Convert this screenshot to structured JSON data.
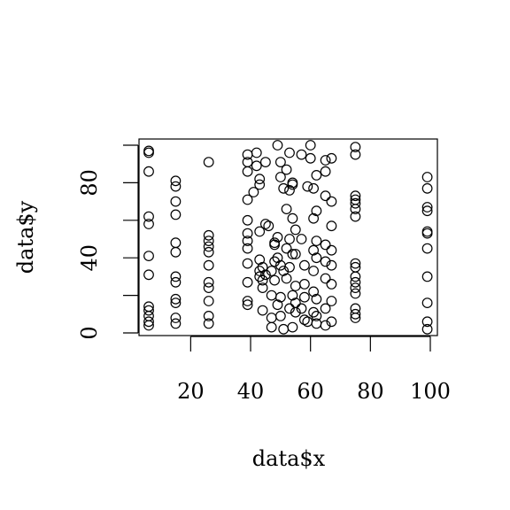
{
  "chart_data": {
    "type": "scatter",
    "title": "",
    "xlabel": "data$x",
    "ylabel": "data$y",
    "xlim": [
      6,
      100
    ],
    "ylim": [
      0,
      100
    ],
    "xticks": [
      20,
      40,
      60,
      80,
      100
    ],
    "yticks": [
      0,
      20,
      40,
      60,
      80,
      100
    ],
    "xtick_labels": [
      "20",
      "40",
      "60",
      "80",
      "100"
    ],
    "ytick_labels": [
      "0",
      "",
      "40",
      "",
      "80",
      ""
    ],
    "grid": false,
    "legend": "none",
    "marker": "open-circle",
    "color": "#000000",
    "x": [
      6,
      6,
      6,
      6,
      6,
      6,
      6,
      6,
      6,
      6,
      6,
      6,
      15,
      15,
      15,
      15,
      15,
      15,
      15,
      15,
      15,
      15,
      15,
      15,
      26,
      26,
      26,
      26,
      26,
      26,
      26,
      26,
      26,
      26,
      26,
      39,
      39,
      39,
      39,
      39,
      39,
      39,
      39,
      39,
      39,
      39,
      39,
      41,
      42,
      42,
      43,
      43,
      43,
      43,
      43,
      43,
      44,
      44,
      44,
      44,
      45,
      45,
      45,
      46,
      47,
      47,
      47,
      47,
      48,
      48,
      48,
      48,
      49,
      49,
      49,
      49,
      50,
      50,
      50,
      50,
      50,
      51,
      51,
      51,
      52,
      52,
      52,
      52,
      53,
      53,
      53,
      53,
      53,
      54,
      54,
      54,
      54,
      54,
      54,
      55,
      55,
      55,
      55,
      55,
      57,
      57,
      57,
      58,
      58,
      58,
      58,
      59,
      59,
      60,
      60,
      61,
      61,
      61,
      61,
      61,
      61,
      62,
      62,
      62,
      62,
      62,
      62,
      62,
      65,
      65,
      65,
      65,
      65,
      65,
      65,
      65,
      67,
      67,
      67,
      67,
      67,
      67,
      67,
      67,
      75,
      75,
      75,
      75,
      75,
      75,
      75,
      75,
      75,
      75,
      75,
      75,
      75,
      75,
      75,
      75,
      99,
      99,
      99,
      99,
      99,
      99,
      99,
      99,
      99,
      99,
      99
    ],
    "y": [
      97,
      96,
      86,
      62,
      58,
      41,
      31,
      12,
      9,
      4,
      6,
      14,
      81,
      78,
      63,
      48,
      43,
      30,
      27,
      16,
      8,
      5,
      18,
      70,
      91,
      52,
      49,
      46,
      43,
      36,
      27,
      17,
      5,
      9,
      24,
      95,
      91,
      86,
      71,
      60,
      53,
      49,
      27,
      17,
      15,
      37,
      45,
      75,
      96,
      89,
      82,
      79,
      54,
      39,
      33,
      30,
      12,
      28,
      35,
      24,
      91,
      58,
      31,
      57,
      33,
      20,
      3,
      8,
      48,
      47,
      38,
      28,
      100,
      51,
      40,
      15,
      91,
      83,
      36,
      19,
      9,
      2,
      77,
      33,
      87,
      66,
      45,
      29,
      96,
      76,
      50,
      35,
      13,
      79,
      61,
      42,
      20,
      80,
      3,
      55,
      42,
      25,
      16,
      11,
      95,
      50,
      13,
      36,
      26,
      19,
      7,
      78,
      6,
      100,
      93,
      77,
      61,
      44,
      33,
      22,
      11,
      84,
      65,
      49,
      40,
      18,
      9,
      5,
      92,
      86,
      73,
      47,
      38,
      29,
      13,
      4,
      93,
      70,
      57,
      44,
      36,
      26,
      17,
      6,
      99,
      95,
      73,
      71,
      69,
      66,
      62,
      37,
      35,
      30,
      27,
      24,
      21,
      13,
      10,
      8,
      83,
      77,
      67,
      65,
      54,
      53,
      45,
      30,
      16,
      6,
      2
    ]
  }
}
